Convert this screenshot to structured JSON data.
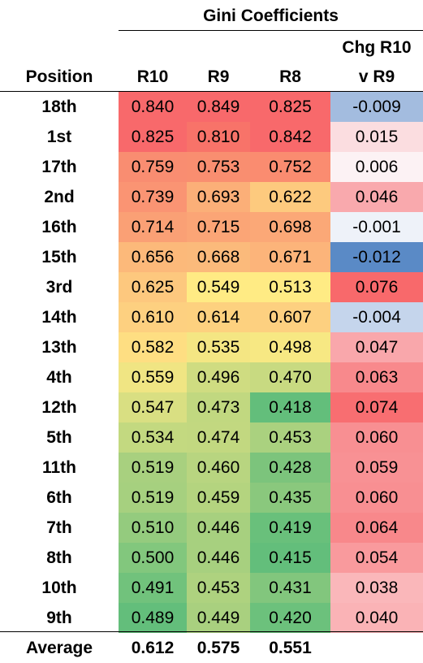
{
  "header": {
    "group_title": "Gini Coefficients",
    "position": "Position",
    "r10": "R10",
    "r9": "R9",
    "r8": "R8",
    "chg_line1": "Chg R10",
    "chg_line2": "v R9"
  },
  "rows": [
    {
      "pos": "18th",
      "r10": "0.840",
      "r9": "0.849",
      "r8": "0.825",
      "chg": "-0.009",
      "c10": "#f8696b",
      "c9": "#f8696b",
      "c8": "#f8696b",
      "cc": "#a3bcdf"
    },
    {
      "pos": "1st",
      "r10": "0.825",
      "r9": "0.810",
      "r8": "0.842",
      "chg": "0.015",
      "c10": "#f8696b",
      "c9": "#f87369",
      "c8": "#f8696b",
      "cc": "#fbdde0"
    },
    {
      "pos": "17th",
      "r10": "0.759",
      "r9": "0.753",
      "r8": "0.752",
      "chg": "0.006",
      "c10": "#f98d71",
      "c9": "#f98e70",
      "c8": "#fa8c70",
      "cc": "#fcf2f4"
    },
    {
      "pos": "2nd",
      "r10": "0.739",
      "r9": "0.693",
      "r8": "0.622",
      "chg": "0.046",
      "c10": "#fa9473",
      "c9": "#fbaf78",
      "c8": "#fdca7e",
      "cc": "#f9a9ad"
    },
    {
      "pos": "16th",
      "r10": "0.714",
      "r9": "0.715",
      "r8": "0.698",
      "chg": "-0.001",
      "c10": "#faa075",
      "c9": "#fba576",
      "c8": "#fba877",
      "cc": "#eef2f9"
    },
    {
      "pos": "15th",
      "r10": "0.656",
      "r9": "0.668",
      "r8": "0.671",
      "chg": "-0.012",
      "c10": "#fcb97a",
      "c9": "#fbba7b",
      "c8": "#fcb47a",
      "cc": "#5a8ac6"
    },
    {
      "pos": "3rd",
      "r10": "0.625",
      "r9": "0.549",
      "r8": "0.513",
      "chg": "0.076",
      "c10": "#fdc87e",
      "c9": "#ffeb84",
      "c8": "#ffeb84",
      "cc": "#f8696b"
    },
    {
      "pos": "14th",
      "r10": "0.610",
      "r9": "0.614",
      "r8": "0.607",
      "chg": "-0.004",
      "c10": "#fdd080",
      "c9": "#fdd17f",
      "c8": "#fdd080",
      "cc": "#c5d5ec"
    },
    {
      "pos": "13th",
      "r10": "0.582",
      "r9": "0.535",
      "r8": "0.498",
      "chg": "0.047",
      "c10": "#fede82",
      "c9": "#f4e683",
      "c8": "#f7e883",
      "cc": "#f9a7ab"
    },
    {
      "pos": "4th",
      "r10": "0.559",
      "r9": "0.496",
      "r8": "0.470",
      "chg": "0.063",
      "c10": "#f0e583",
      "c9": "#cfdc81",
      "c8": "#c8da81",
      "cc": "#f8898c"
    },
    {
      "pos": "12th",
      "r10": "0.547",
      "r9": "0.473",
      "r8": "0.418",
      "chg": "0.074",
      "c10": "#d9df82",
      "c9": "#c1d880",
      "c8": "#63be7b",
      "cc": "#f86e71"
    },
    {
      "pos": "5th",
      "r10": "0.534",
      "r9": "0.474",
      "r8": "0.453",
      "chg": "0.060",
      "c10": "#c3d980",
      "c9": "#c2d880",
      "c8": "#aad17f",
      "cc": "#f88f92"
    },
    {
      "pos": "11th",
      "r10": "0.519",
      "r9": "0.460",
      "r8": "0.428",
      "chg": "0.059",
      "c10": "#a8d07f",
      "c9": "#b8d580",
      "c8": "#7cc47c",
      "cc": "#f89194"
    },
    {
      "pos": "6th",
      "r10": "0.519",
      "r9": "0.459",
      "r8": "0.435",
      "chg": "0.060",
      "c10": "#a6d07f",
      "c9": "#b4d47f",
      "c8": "#8ac87d",
      "cc": "#f88f92"
    },
    {
      "pos": "7th",
      "r10": "0.510",
      "r9": "0.446",
      "r8": "0.419",
      "chg": "0.064",
      "c10": "#94cb7e",
      "c9": "#a7d07f",
      "c8": "#69c07b",
      "cc": "#f8888b"
    },
    {
      "pos": "8th",
      "r10": "0.500",
      "r9": "0.446",
      "r8": "0.415",
      "chg": "0.054",
      "c10": "#82c77d",
      "c9": "#a7d07f",
      "c8": "#63be7b",
      "cc": "#f99a9d"
    },
    {
      "pos": "10th",
      "r10": "0.491",
      "r9": "0.453",
      "r8": "0.431",
      "chg": "0.038",
      "c10": "#71c27c",
      "c9": "#aed27f",
      "c8": "#82c67d",
      "cc": "#fab7ba"
    },
    {
      "pos": "9th",
      "r10": "0.489",
      "r9": "0.449",
      "r8": "0.420",
      "chg": "0.040",
      "c10": "#63be7b",
      "c9": "#a9d07f",
      "c8": "#6cc17c",
      "cc": "#fab3b6"
    }
  ],
  "average": {
    "label": "Average",
    "r10": "0.612",
    "r9": "0.575",
    "r8": "0.551"
  }
}
